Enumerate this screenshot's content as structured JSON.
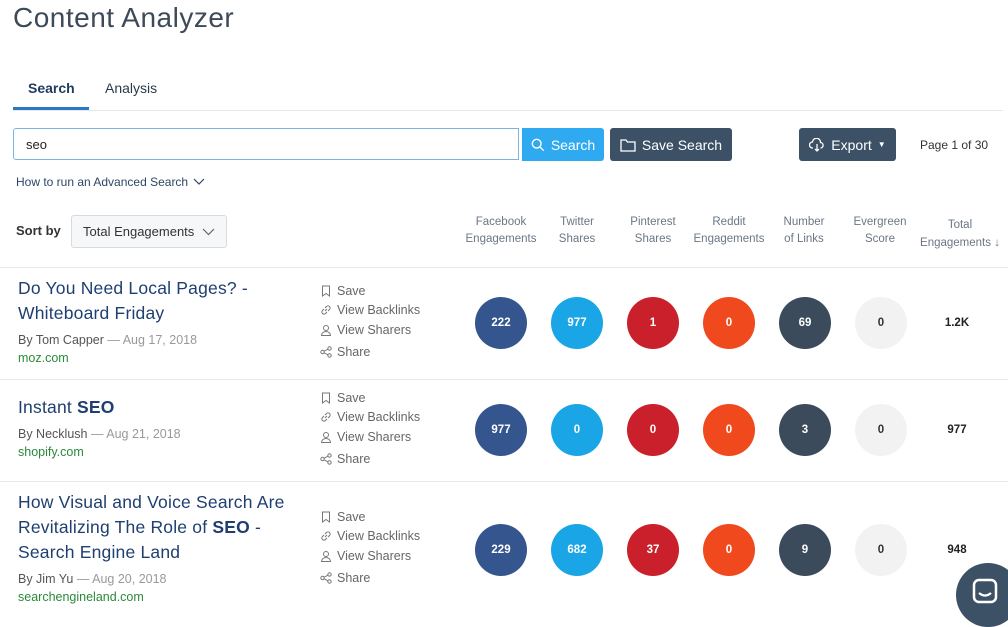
{
  "app": {
    "title": "Content Analyzer"
  },
  "tabs": [
    {
      "label": "Search",
      "active": true
    },
    {
      "label": "Analysis",
      "active": false
    }
  ],
  "search": {
    "value": "seo",
    "button_label": "Search"
  },
  "save_search": {
    "label": "Save Search"
  },
  "export": {
    "label": "Export"
  },
  "pagination": {
    "text": "Page 1 of 30"
  },
  "advanced_search_link": "How to run an Advanced Search",
  "sort": {
    "label": "Sort by",
    "selected": "Total Engagements"
  },
  "columns": [
    {
      "line1": "Facebook",
      "line2": "Engagements"
    },
    {
      "line1": "Twitter",
      "line2": "Shares"
    },
    {
      "line1": "Pinterest",
      "line2": "Shares"
    },
    {
      "line1": "Reddit",
      "line2": "Engagements"
    },
    {
      "line1": "Number",
      "line2": "of Links"
    },
    {
      "line1": "Evergreen",
      "line2": "Score"
    },
    {
      "line1": "Total",
      "line2": "Engagements ↓"
    }
  ],
  "actions": {
    "save": "Save",
    "backlinks": "View Backlinks",
    "sharers": "View Sharers",
    "share": "Share"
  },
  "results": [
    {
      "title": "Do You Need Local Pages? - Whiteboard Friday",
      "author": "By Tom Capper",
      "date": "— Aug 17, 2018",
      "domain": "moz.com",
      "facebook": "222",
      "twitter": "977",
      "pinterest": "1",
      "reddit": "0",
      "links": "69",
      "evergreen": "0",
      "total": "1.2K"
    },
    {
      "title_prefix": "Instant ",
      "title_bold": "SEO",
      "author": "By Necklush",
      "date": "— Aug 21, 2018",
      "domain": "shopify.com",
      "facebook": "977",
      "twitter": "0",
      "pinterest": "0",
      "reddit": "0",
      "links": "3",
      "evergreen": "0",
      "total": "977"
    },
    {
      "title_prefix": "How Visual and Voice Search Are Revitalizing The Role of ",
      "title_bold": "SEO",
      "title_suffix": " - Search Engine Land",
      "author": "By Jim Yu",
      "date": "— Aug 20, 2018",
      "domain": "searchengineland.com",
      "facebook": "229",
      "twitter": "682",
      "pinterest": "37",
      "reddit": "0",
      "links": "9",
      "evergreen": "0",
      "total": "948"
    }
  ],
  "colors": {
    "facebook": "#35558f",
    "twitter": "#1aa5e6",
    "pinterest": "#c9202b",
    "reddit": "#f0491e",
    "links": "#3c4b5c",
    "evergreen": "#f2f2f2"
  }
}
